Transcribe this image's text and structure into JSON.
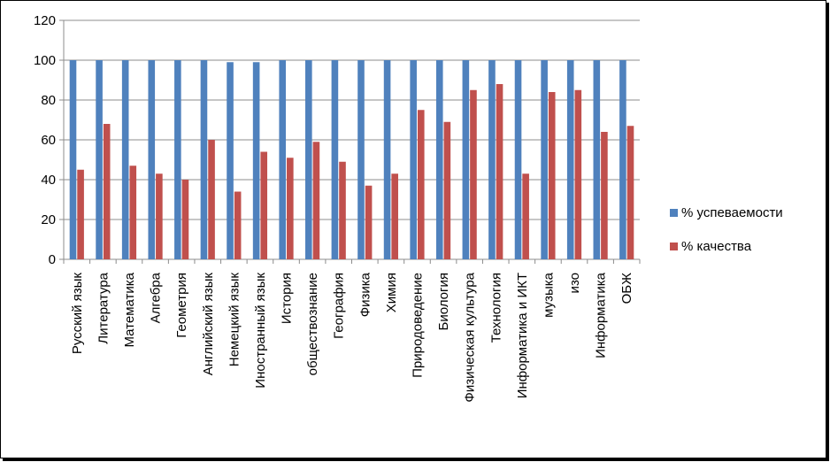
{
  "chart_data": {
    "type": "bar",
    "ylim": [
      0,
      120
    ],
    "yticks": [
      0,
      20,
      40,
      60,
      80,
      100,
      120
    ],
    "grid": true,
    "legend_position": "right",
    "categories": [
      "Русский язык",
      "Литература",
      "Математика",
      "Алгебра",
      "Геометрия",
      "Английский язык",
      "Немецкий  язык",
      "Иностранный язык",
      "История",
      "обществознание",
      "География",
      "Физика",
      "Химия",
      "Природоведение",
      "Биология",
      "Физическая культура",
      "Технология",
      "Информатика  и  ИКТ",
      "музыка",
      "изо",
      "Информатика",
      "ОБЖ"
    ],
    "series": [
      {
        "name": "% успеваемости",
        "color": "#4f81bd",
        "values": [
          100,
          100,
          100,
          100,
          100,
          100,
          99,
          99,
          100,
          100,
          100,
          100,
          100,
          100,
          100,
          100,
          100,
          100,
          100,
          100,
          100,
          100
        ]
      },
      {
        "name": "% качества",
        "color": "#c0504d",
        "values": [
          45,
          68,
          47,
          43,
          40,
          60,
          34,
          54,
          51,
          59,
          49,
          37,
          43,
          75,
          69,
          85,
          88,
          43,
          84,
          85,
          64,
          67
        ]
      }
    ]
  }
}
